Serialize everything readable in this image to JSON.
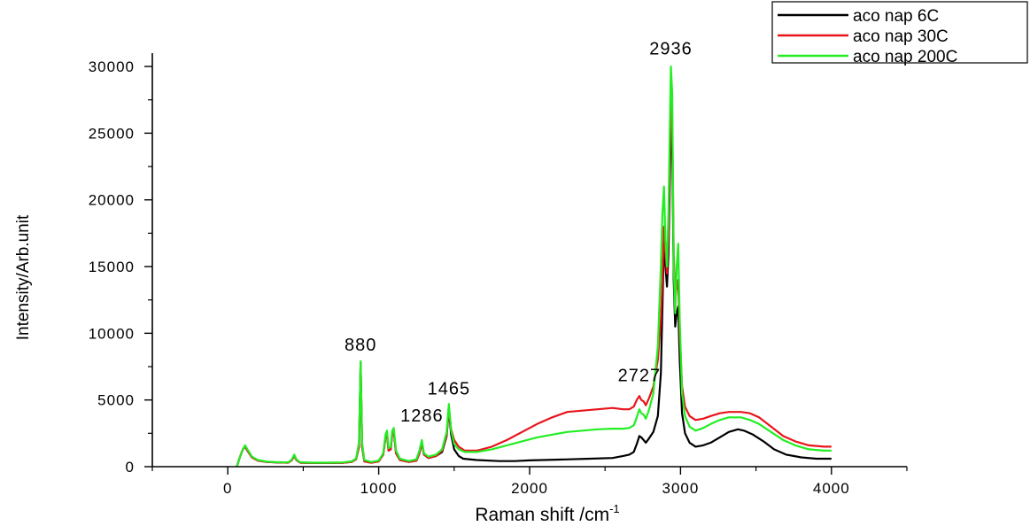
{
  "chart_data": {
    "type": "line",
    "xlabel": "Raman shift /cm",
    "xlabel_superscript": "-1",
    "ylabel": "Intensity/Arb.unit",
    "xlim": [
      -500,
      4500
    ],
    "ylim": [
      0,
      31000
    ],
    "x_ticks": [
      0,
      1000,
      2000,
      3000,
      4000
    ],
    "x_tick_labels": [
      "0",
      "1000",
      "2000",
      "3000",
      "4000"
    ],
    "y_ticks": [
      0,
      5000,
      10000,
      15000,
      20000,
      25000,
      30000
    ],
    "y_tick_labels": [
      "0",
      "5000",
      "10000",
      "15000",
      "20000",
      "25000",
      "30000"
    ],
    "grid": false,
    "legend_position": "top-right",
    "annotations": [
      {
        "text": "880",
        "x": 880,
        "y": 8700
      },
      {
        "text": "1286",
        "x": 1286,
        "y": 3400
      },
      {
        "text": "1465",
        "x": 1465,
        "y": 5400
      },
      {
        "text": "2727",
        "x": 2727,
        "y": 6400
      },
      {
        "text": "2936",
        "x": 2936,
        "y": 30900
      }
    ],
    "series": [
      {
        "name": "aco nap 6C",
        "color": "#000000",
        "points": [
          [
            60,
            0
          ],
          [
            80,
            700
          ],
          [
            100,
            1300
          ],
          [
            115,
            1500
          ],
          [
            130,
            1200
          ],
          [
            160,
            700
          ],
          [
            200,
            450
          ],
          [
            260,
            350
          ],
          [
            320,
            320
          ],
          [
            400,
            300
          ],
          [
            425,
            500
          ],
          [
            440,
            800
          ],
          [
            455,
            500
          ],
          [
            480,
            300
          ],
          [
            560,
            280
          ],
          [
            650,
            280
          ],
          [
            760,
            290
          ],
          [
            820,
            350
          ],
          [
            850,
            550
          ],
          [
            870,
            1500
          ],
          [
            880,
            7800
          ],
          [
            890,
            1500
          ],
          [
            905,
            400
          ],
          [
            950,
            300
          ],
          [
            1000,
            400
          ],
          [
            1030,
            900
          ],
          [
            1045,
            2200
          ],
          [
            1055,
            2500
          ],
          [
            1065,
            1200
          ],
          [
            1080,
            1300
          ],
          [
            1090,
            2500
          ],
          [
            1100,
            2700
          ],
          [
            1115,
            1000
          ],
          [
            1140,
            500
          ],
          [
            1200,
            350
          ],
          [
            1250,
            450
          ],
          [
            1270,
            1000
          ],
          [
            1286,
            1800
          ],
          [
            1300,
            900
          ],
          [
            1330,
            650
          ],
          [
            1380,
            800
          ],
          [
            1420,
            1100
          ],
          [
            1450,
            2300
          ],
          [
            1465,
            4300
          ],
          [
            1480,
            2400
          ],
          [
            1500,
            1300
          ],
          [
            1530,
            800
          ],
          [
            1560,
            600
          ],
          [
            1650,
            500
          ],
          [
            1800,
            420
          ],
          [
            1900,
            420
          ],
          [
            2000,
            470
          ],
          [
            2200,
            530
          ],
          [
            2400,
            600
          ],
          [
            2550,
            650
          ],
          [
            2620,
            800
          ],
          [
            2660,
            900
          ],
          [
            2690,
            1100
          ],
          [
            2710,
            1700
          ],
          [
            2727,
            2300
          ],
          [
            2740,
            2200
          ],
          [
            2755,
            2000
          ],
          [
            2770,
            1800
          ],
          [
            2790,
            2100
          ],
          [
            2820,
            2600
          ],
          [
            2850,
            3800
          ],
          [
            2870,
            7000
          ],
          [
            2880,
            12000
          ],
          [
            2890,
            17000
          ],
          [
            2900,
            15000
          ],
          [
            2910,
            13500
          ],
          [
            2920,
            16000
          ],
          [
            2936,
            25500
          ],
          [
            2945,
            24500
          ],
          [
            2955,
            14000
          ],
          [
            2965,
            10500
          ],
          [
            2975,
            11500
          ],
          [
            2985,
            12000
          ],
          [
            2995,
            8000
          ],
          [
            3010,
            4000
          ],
          [
            3030,
            2500
          ],
          [
            3060,
            1800
          ],
          [
            3100,
            1500
          ],
          [
            3150,
            1600
          ],
          [
            3200,
            1800
          ],
          [
            3260,
            2200
          ],
          [
            3320,
            2600
          ],
          [
            3380,
            2800
          ],
          [
            3420,
            2700
          ],
          [
            3480,
            2400
          ],
          [
            3550,
            1900
          ],
          [
            3620,
            1300
          ],
          [
            3700,
            900
          ],
          [
            3800,
            700
          ],
          [
            3900,
            600
          ],
          [
            4000,
            600
          ]
        ]
      },
      {
        "name": "aco nap 30C",
        "color": "#e8141c",
        "points": [
          [
            60,
            0
          ],
          [
            80,
            700
          ],
          [
            100,
            1300
          ],
          [
            115,
            1500
          ],
          [
            130,
            1200
          ],
          [
            160,
            700
          ],
          [
            200,
            450
          ],
          [
            260,
            350
          ],
          [
            320,
            320
          ],
          [
            400,
            300
          ],
          [
            425,
            500
          ],
          [
            440,
            800
          ],
          [
            455,
            500
          ],
          [
            480,
            300
          ],
          [
            560,
            280
          ],
          [
            650,
            280
          ],
          [
            760,
            290
          ],
          [
            820,
            350
          ],
          [
            850,
            550
          ],
          [
            870,
            1500
          ],
          [
            880,
            7800
          ],
          [
            890,
            1500
          ],
          [
            905,
            400
          ],
          [
            950,
            300
          ],
          [
            1000,
            400
          ],
          [
            1030,
            900
          ],
          [
            1045,
            2200
          ],
          [
            1055,
            2500
          ],
          [
            1065,
            1200
          ],
          [
            1080,
            1300
          ],
          [
            1090,
            2500
          ],
          [
            1100,
            2700
          ],
          [
            1115,
            1000
          ],
          [
            1140,
            500
          ],
          [
            1200,
            350
          ],
          [
            1250,
            450
          ],
          [
            1270,
            1000
          ],
          [
            1286,
            1800
          ],
          [
            1300,
            900
          ],
          [
            1330,
            650
          ],
          [
            1380,
            800
          ],
          [
            1420,
            1200
          ],
          [
            1450,
            2400
          ],
          [
            1465,
            4400
          ],
          [
            1480,
            2800
          ],
          [
            1500,
            2000
          ],
          [
            1530,
            1500
          ],
          [
            1570,
            1200
          ],
          [
            1650,
            1200
          ],
          [
            1750,
            1500
          ],
          [
            1850,
            2000
          ],
          [
            1950,
            2600
          ],
          [
            2050,
            3200
          ],
          [
            2150,
            3700
          ],
          [
            2250,
            4100
          ],
          [
            2350,
            4200
          ],
          [
            2450,
            4300
          ],
          [
            2550,
            4400
          ],
          [
            2620,
            4300
          ],
          [
            2660,
            4300
          ],
          [
            2690,
            4500
          ],
          [
            2710,
            5000
          ],
          [
            2727,
            5300
          ],
          [
            2740,
            5000
          ],
          [
            2755,
            4900
          ],
          [
            2770,
            4600
          ],
          [
            2790,
            5100
          ],
          [
            2820,
            6000
          ],
          [
            2850,
            8000
          ],
          [
            2870,
            11000
          ],
          [
            2880,
            14000
          ],
          [
            2890,
            18000
          ],
          [
            2900,
            16000
          ],
          [
            2910,
            14500
          ],
          [
            2920,
            17500
          ],
          [
            2936,
            28000
          ],
          [
            2945,
            26000
          ],
          [
            2955,
            16000
          ],
          [
            2965,
            12500
          ],
          [
            2975,
            13500
          ],
          [
            2985,
            14000
          ],
          [
            2995,
            10000
          ],
          [
            3010,
            6000
          ],
          [
            3030,
            4500
          ],
          [
            3060,
            3800
          ],
          [
            3100,
            3500
          ],
          [
            3150,
            3600
          ],
          [
            3200,
            3800
          ],
          [
            3260,
            4000
          ],
          [
            3320,
            4100
          ],
          [
            3400,
            4100
          ],
          [
            3460,
            4000
          ],
          [
            3520,
            3700
          ],
          [
            3600,
            3000
          ],
          [
            3680,
            2300
          ],
          [
            3760,
            1900
          ],
          [
            3850,
            1600
          ],
          [
            3950,
            1500
          ],
          [
            4000,
            1500
          ]
        ]
      },
      {
        "name": "aco nap 200C",
        "color": "#22ee22",
        "points": [
          [
            60,
            0
          ],
          [
            80,
            700
          ],
          [
            100,
            1300
          ],
          [
            115,
            1600
          ],
          [
            130,
            1300
          ],
          [
            160,
            750
          ],
          [
            200,
            500
          ],
          [
            260,
            380
          ],
          [
            320,
            340
          ],
          [
            400,
            320
          ],
          [
            425,
            550
          ],
          [
            440,
            900
          ],
          [
            455,
            550
          ],
          [
            480,
            330
          ],
          [
            560,
            300
          ],
          [
            650,
            300
          ],
          [
            760,
            320
          ],
          [
            820,
            400
          ],
          [
            850,
            600
          ],
          [
            870,
            1800
          ],
          [
            880,
            7900
          ],
          [
            890,
            1800
          ],
          [
            905,
            500
          ],
          [
            950,
            350
          ],
          [
            1000,
            450
          ],
          [
            1030,
            1000
          ],
          [
            1045,
            2400
          ],
          [
            1055,
            2700
          ],
          [
            1065,
            1400
          ],
          [
            1080,
            1500
          ],
          [
            1090,
            2700
          ],
          [
            1100,
            2900
          ],
          [
            1115,
            1200
          ],
          [
            1140,
            600
          ],
          [
            1200,
            420
          ],
          [
            1250,
            550
          ],
          [
            1270,
            1200
          ],
          [
            1286,
            2000
          ],
          [
            1300,
            1000
          ],
          [
            1330,
            750
          ],
          [
            1380,
            900
          ],
          [
            1420,
            1300
          ],
          [
            1450,
            2600
          ],
          [
            1465,
            4700
          ],
          [
            1480,
            2700
          ],
          [
            1500,
            1700
          ],
          [
            1530,
            1300
          ],
          [
            1570,
            1100
          ],
          [
            1650,
            1100
          ],
          [
            1750,
            1300
          ],
          [
            1850,
            1600
          ],
          [
            1950,
            1900
          ],
          [
            2050,
            2200
          ],
          [
            2150,
            2400
          ],
          [
            2250,
            2600
          ],
          [
            2350,
            2700
          ],
          [
            2450,
            2800
          ],
          [
            2550,
            2850
          ],
          [
            2620,
            2850
          ],
          [
            2660,
            2900
          ],
          [
            2690,
            3100
          ],
          [
            2710,
            3700
          ],
          [
            2727,
            4300
          ],
          [
            2740,
            4000
          ],
          [
            2755,
            3900
          ],
          [
            2770,
            3600
          ],
          [
            2790,
            4200
          ],
          [
            2820,
            5500
          ],
          [
            2850,
            9000
          ],
          [
            2870,
            15000
          ],
          [
            2880,
            19000
          ],
          [
            2890,
            21000
          ],
          [
            2900,
            17000
          ],
          [
            2910,
            15000
          ],
          [
            2920,
            19000
          ],
          [
            2936,
            30000
          ],
          [
            2945,
            28000
          ],
          [
            2955,
            15000
          ],
          [
            2965,
            11500
          ],
          [
            2975,
            15000
          ],
          [
            2985,
            16700
          ],
          [
            2995,
            11000
          ],
          [
            3010,
            5500
          ],
          [
            3030,
            3800
          ],
          [
            3060,
            3000
          ],
          [
            3100,
            2700
          ],
          [
            3150,
            2900
          ],
          [
            3200,
            3200
          ],
          [
            3260,
            3500
          ],
          [
            3320,
            3700
          ],
          [
            3400,
            3700
          ],
          [
            3460,
            3500
          ],
          [
            3520,
            3200
          ],
          [
            3600,
            2600
          ],
          [
            3680,
            2000
          ],
          [
            3760,
            1600
          ],
          [
            3850,
            1300
          ],
          [
            3950,
            1200
          ],
          [
            4000,
            1200
          ]
        ]
      }
    ]
  }
}
